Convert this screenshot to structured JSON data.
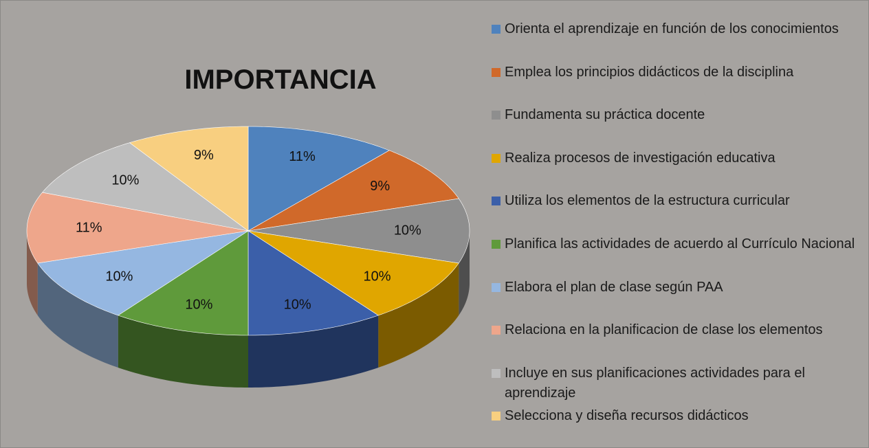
{
  "chart_data": {
    "type": "pie3d",
    "title": "IMPORTANCIA",
    "categories": [
      "Orienta el aprendizaje en función de los conocimientos",
      "Emplea los principios didácticos de la disciplina",
      "Fundamenta su práctica docente",
      "Realiza procesos de investigación educativa",
      "Utiliza los  elementos de la estructura curricular",
      "Planifica las actividades de acuerdo al Currículo Nacional",
      "Elabora el plan de clase según PAA",
      "Relaciona en la planificacion de clase los elementos",
      "Incluye en sus planificaciones actividades para el aprendizaje",
      "Selecciona y diseña recursos didácticos"
    ],
    "values": [
      11,
      9,
      10,
      10,
      10,
      10,
      10,
      11,
      10,
      9
    ],
    "value_labels": [
      "11%",
      "9%",
      "10%",
      "10%",
      "10%",
      "10%",
      "10%",
      "11%",
      "10%",
      "9%"
    ],
    "colors": [
      "#4f82bd",
      "#d0692a",
      "#8e8e8e",
      "#e0a600",
      "#3b5fa9",
      "#5f9a3b",
      "#95b7e1",
      "#eea68b",
      "#bebebe",
      "#f8cf80"
    ],
    "legend": "right"
  }
}
